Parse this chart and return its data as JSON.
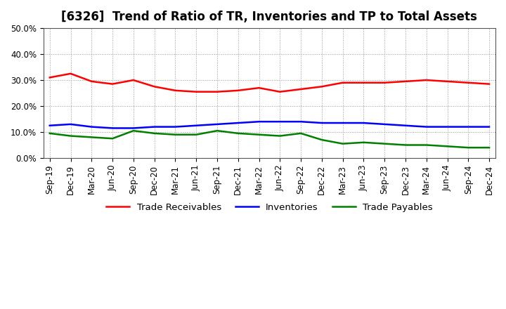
{
  "title": "[6326]  Trend of Ratio of TR, Inventories and TP to Total Assets",
  "x_labels": [
    "Sep-19",
    "Dec-19",
    "Mar-20",
    "Jun-20",
    "Sep-20",
    "Dec-20",
    "Mar-21",
    "Jun-21",
    "Sep-21",
    "Dec-21",
    "Mar-22",
    "Jun-22",
    "Sep-22",
    "Dec-22",
    "Mar-23",
    "Jun-23",
    "Sep-23",
    "Dec-23",
    "Mar-24",
    "Jun-24",
    "Sep-24",
    "Dec-24"
  ],
  "trade_receivables": [
    31.0,
    32.5,
    29.5,
    28.5,
    30.0,
    27.5,
    26.0,
    25.5,
    25.5,
    26.0,
    27.0,
    25.5,
    26.5,
    27.5,
    29.0,
    29.0,
    29.0,
    29.5,
    30.0,
    29.5,
    29.0,
    28.5
  ],
  "inventories": [
    12.5,
    13.0,
    12.0,
    11.5,
    11.5,
    12.0,
    12.0,
    12.5,
    13.0,
    13.5,
    14.0,
    14.0,
    14.0,
    13.5,
    13.5,
    13.5,
    13.0,
    12.5,
    12.0,
    12.0,
    12.0,
    12.0
  ],
  "trade_payables": [
    9.5,
    8.5,
    8.0,
    7.5,
    10.5,
    9.5,
    9.0,
    9.0,
    10.5,
    9.5,
    9.0,
    8.5,
    9.5,
    7.0,
    5.5,
    6.0,
    5.5,
    5.0,
    5.0,
    4.5,
    4.0,
    4.0
  ],
  "line_colors": {
    "trade_receivables": "#FF0000",
    "inventories": "#0000FF",
    "trade_payables": "#008000"
  },
  "ylim": [
    0,
    50
  ],
  "yticks": [
    0,
    10,
    20,
    30,
    40,
    50
  ],
  "ytick_labels": [
    "0.0%",
    "10.0%",
    "20.0%",
    "30.0%",
    "40.0%",
    "50.0%"
  ],
  "legend_labels": [
    "Trade Receivables",
    "Inventories",
    "Trade Payables"
  ],
  "background_color": "#FFFFFF",
  "plot_bg_color": "#FFFFFF",
  "grid_color": "#999999",
  "title_fontsize": 12,
  "tick_fontsize": 8.5,
  "legend_fontsize": 9.5,
  "line_width": 1.8
}
